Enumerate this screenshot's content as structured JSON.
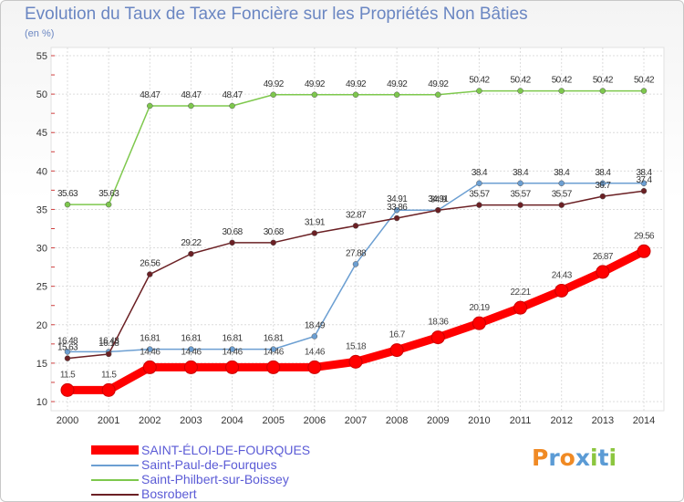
{
  "chart_data": {
    "type": "line",
    "title": "Evolution du Taux de Taxe Foncière sur les Propriétés Non Bâties",
    "subtitle": "(en %)",
    "xlabel": "",
    "ylabel": "(en %)",
    "ylim": [
      10,
      55
    ],
    "yticks": [
      10,
      15,
      20,
      25,
      30,
      35,
      40,
      45,
      50,
      55
    ],
    "categories": [
      "2000",
      "2001",
      "2002",
      "2003",
      "2004",
      "2005",
      "2006",
      "2007",
      "2008",
      "2009",
      "2010",
      "2011",
      "2012",
      "2013",
      "2014"
    ],
    "grid": true,
    "legend_position": "bottom-left",
    "series": [
      {
        "name": "Saint-Philbert-sur-Boissey",
        "color": "#7ec84d",
        "values": [
          35.63,
          35.63,
          48.47,
          48.47,
          48.47,
          49.92,
          49.92,
          49.92,
          49.92,
          49.92,
          50.42,
          50.42,
          50.42,
          50.42,
          50.42
        ],
        "labels": [
          "35.63",
          "35.63",
          "48.47",
          "48.47",
          "48.47",
          "49.92",
          "49.92",
          "49.92",
          "49.92",
          "49.92",
          "50.42",
          "50.42",
          "50.42",
          "50.42",
          "50.42"
        ]
      },
      {
        "name": "Saint-Paul-de-Fourques",
        "color": "#6c9fd2",
        "values": [
          16.48,
          16.48,
          16.81,
          16.81,
          16.81,
          16.81,
          18.49,
          27.88,
          34.91,
          34.91,
          38.4,
          38.4,
          38.4,
          38.4,
          38.4
        ],
        "labels": [
          "16.48",
          "16.48",
          "16.81",
          "16.81",
          "16.81",
          "16.81",
          "18.49",
          "27.88",
          "34.91",
          "34.91",
          "38.4",
          "38.4",
          "38.4",
          "38.4",
          "38.4"
        ]
      },
      {
        "name": "Bosrobert",
        "color": "#6b2024",
        "values": [
          15.63,
          16.18,
          26.56,
          29.22,
          30.68,
          30.68,
          31.91,
          32.87,
          33.86,
          34.9,
          35.57,
          35.57,
          35.57,
          36.7,
          37.4
        ],
        "labels": [
          "15.63",
          "16.18",
          "26.56",
          "29.22",
          "30.68",
          "30.68",
          "31.91",
          "32.87",
          "33.86",
          "34.9",
          "35.57",
          "35.57",
          "35.57",
          "36.7",
          "37.4"
        ]
      },
      {
        "name": "SAINT-ÉLOI-DE-FOURQUES",
        "color": "#ff0000",
        "values": [
          11.5,
          11.5,
          14.46,
          14.46,
          14.46,
          14.46,
          14.46,
          15.18,
          16.7,
          18.36,
          20.19,
          22.21,
          24.43,
          26.87,
          29.56
        ],
        "labels": [
          "11.5",
          "11.5",
          "14.46",
          "14.46",
          "14.46",
          "14.46",
          "14.46",
          "15.18",
          "16.7",
          "18.36",
          "20.19",
          "22.21",
          "24.43",
          "26.87",
          "29.56"
        ]
      }
    ],
    "legend_order": [
      "SAINT-ÉLOI-DE-FOURQUES",
      "Saint-Paul-de-Fourques",
      "Saint-Philbert-sur-Boissey",
      "Bosrobert"
    ]
  },
  "logo": {
    "letters": [
      "P",
      "r",
      "o",
      "x",
      "i",
      "t",
      "i"
    ],
    "colors": [
      "#f08a24",
      "#5b9bd5",
      "#f08a24",
      "#5b9bd5",
      "#8cc63f",
      "#5b9bd5",
      "#8cc63f"
    ]
  }
}
